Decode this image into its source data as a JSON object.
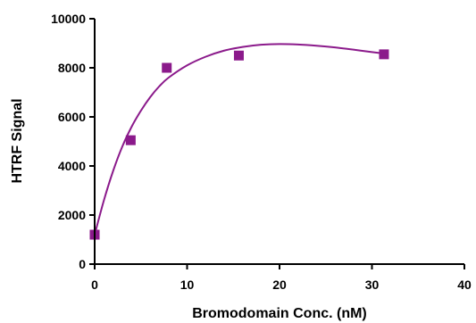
{
  "chart_data": {
    "type": "scatter",
    "title": "",
    "xlabel": "Bromodomain Conc. (nM)",
    "ylabel": "HTRF Signal",
    "xlim": [
      0,
      40
    ],
    "ylim": [
      0,
      10000
    ],
    "x_ticks": [
      0,
      10,
      20,
      30,
      40
    ],
    "y_ticks": [
      0,
      2000,
      4000,
      6000,
      8000,
      10000
    ],
    "grid": false,
    "legend": "none",
    "series": [
      {
        "x": [
          0,
          3.9,
          7.8,
          15.6,
          31.3
        ],
        "y": [
          1200,
          5050,
          8000,
          8500,
          8550
        ],
        "marker": "square",
        "fit": "smooth curve"
      }
    ],
    "fit_curve": {
      "x": [
        0,
        1,
        2,
        3,
        4,
        5,
        6,
        7,
        8,
        10,
        12,
        14,
        16,
        18,
        20,
        22,
        24,
        26,
        28,
        30,
        31.3
      ],
      "y": [
        1200,
        2600,
        3800,
        4800,
        5600,
        6250,
        6800,
        7250,
        7600,
        8100,
        8450,
        8700,
        8850,
        8940,
        8970,
        8950,
        8900,
        8830,
        8740,
        8640,
        8580
      ]
    }
  },
  "colors": {
    "series": "#8B1A8B",
    "axes": "#000000"
  }
}
